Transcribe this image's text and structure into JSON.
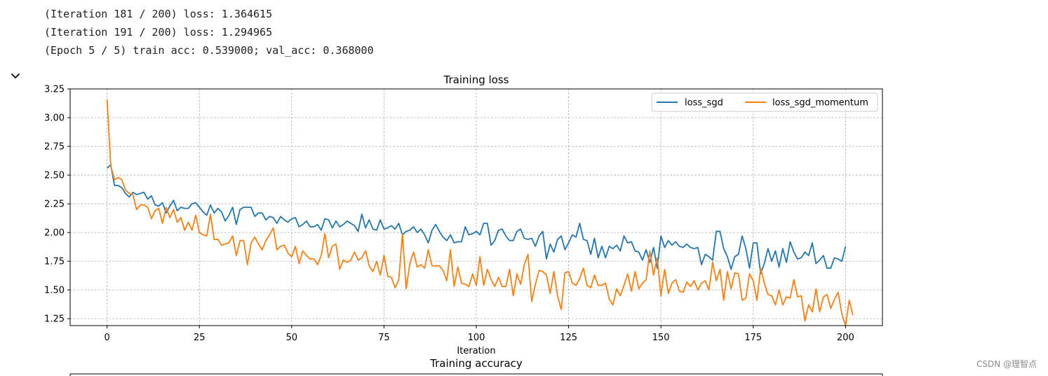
{
  "notebook": {
    "log_lines": [
      "(Iteration 181 / 200) loss: 1.364615",
      "(Iteration 191 / 200) loss: 1.294965",
      "(Epoch 5 / 5) train acc: 0.539000; val_acc: 0.368000"
    ],
    "collapse_icon": "chevron-down-icon"
  },
  "watermark": "CSDN @理智点",
  "chart_data": [
    {
      "type": "line",
      "title": "Training loss",
      "xlabel": "Iteration",
      "ylabel": "",
      "xlim": [
        -10,
        210
      ],
      "ylim": [
        1.19,
        3.25
      ],
      "xticks": [
        0,
        25,
        50,
        75,
        100,
        125,
        150,
        175,
        200
      ],
      "yticks": [
        1.25,
        1.5,
        1.75,
        2.0,
        2.25,
        2.5,
        2.75,
        3.0,
        3.25
      ],
      "grid": true,
      "legend": "top-right",
      "legend_columns": 2,
      "series": [
        {
          "name": "loss_sgd",
          "color": "#1f77b4",
          "values": [
            2.56,
            2.59,
            2.41,
            2.41,
            2.39,
            2.34,
            2.31,
            2.35,
            2.33,
            2.34,
            2.35,
            2.29,
            2.32,
            2.24,
            2.23,
            2.26,
            2.17,
            2.23,
            2.28,
            2.19,
            2.22,
            2.21,
            2.21,
            2.25,
            2.26,
            2.22,
            2.18,
            2.15,
            2.24,
            2.17,
            2.21,
            2.18,
            2.1,
            2.15,
            2.22,
            2.07,
            2.2,
            2.22,
            2.22,
            2.22,
            2.14,
            2.17,
            2.17,
            2.11,
            2.14,
            2.13,
            2.08,
            2.14,
            2.11,
            2.09,
            2.12,
            2.13,
            2.05,
            2.07,
            2.1,
            2.05,
            2.05,
            2.07,
            2.02,
            2.12,
            2.11,
            2.04,
            2.1,
            2.05,
            2.07,
            2.1,
            2.08,
            2.06,
            2.01,
            2.16,
            2.04,
            2.11,
            2.03,
            2.02,
            2.11,
            2.03,
            2.04,
            2.06,
            2.03,
            2.08,
            1.98,
            2.01,
            2.02,
            2.05,
            2.0,
            2.03,
            1.98,
            1.91,
            2.02,
            2.07,
            2.01,
            1.96,
            1.93,
            1.98,
            1.91,
            1.92,
            1.92,
            2.05,
            1.98,
            1.99,
            2.01,
            1.98,
            2.08,
            2.08,
            1.89,
            1.93,
            2.02,
            2.03,
            1.97,
            1.93,
            1.93,
            2.01,
            2.03,
            1.95,
            1.94,
            1.95,
            1.88,
            1.97,
            2.01,
            1.77,
            1.9,
            1.83,
            1.94,
            1.97,
            1.85,
            1.91,
            1.98,
            1.96,
            2.08,
            1.94,
            1.93,
            1.81,
            1.95,
            1.78,
            1.88,
            1.78,
            1.88,
            1.86,
            1.89,
            1.84,
            1.97,
            1.91,
            1.92,
            1.84,
            1.83,
            1.76,
            1.85,
            1.74,
            1.87,
            1.69,
            1.97,
            1.87,
            1.93,
            1.89,
            1.92,
            1.88,
            1.87,
            1.9,
            1.87,
            1.86,
            1.87,
            1.72,
            1.81,
            1.79,
            1.76,
            2.01,
            2.01,
            1.86,
            1.79,
            1.68,
            1.79,
            1.81,
            1.97,
            1.86,
            1.69,
            1.91,
            1.91,
            1.64,
            1.73,
            1.86,
            1.75,
            1.84,
            1.7,
            1.86,
            1.74,
            1.92,
            1.83,
            1.77,
            1.78,
            1.83,
            1.8,
            1.91,
            1.73,
            1.76,
            1.8,
            1.69,
            1.69,
            1.78,
            1.77,
            1.75,
            1.88
          ]
        },
        {
          "name": "loss_sgd_momentum",
          "color": "#ff7f0e",
          "values": [
            3.16,
            2.58,
            2.46,
            2.48,
            2.46,
            2.37,
            2.34,
            2.33,
            2.2,
            2.24,
            2.24,
            2.22,
            2.12,
            2.19,
            2.21,
            2.08,
            2.22,
            2.13,
            2.2,
            2.09,
            2.13,
            2.02,
            2.09,
            2.02,
            2.15,
            2.0,
            1.98,
            1.97,
            2.16,
            1.94,
            1.94,
            1.89,
            1.9,
            1.91,
            1.97,
            1.8,
            1.93,
            1.93,
            1.72,
            1.91,
            1.96,
            1.9,
            1.85,
            1.93,
            1.98,
            2.04,
            1.85,
            1.88,
            1.89,
            1.82,
            1.79,
            1.88,
            1.73,
            1.84,
            1.8,
            1.77,
            1.77,
            1.72,
            1.8,
            1.99,
            1.78,
            1.88,
            1.9,
            1.68,
            1.76,
            1.74,
            1.76,
            1.83,
            1.76,
            1.78,
            1.84,
            1.71,
            1.66,
            1.75,
            1.63,
            1.8,
            1.62,
            1.61,
            1.52,
            1.59,
            1.99,
            1.51,
            1.73,
            1.83,
            1.7,
            1.72,
            1.69,
            1.85,
            1.71,
            1.71,
            1.71,
            1.67,
            1.58,
            1.85,
            1.53,
            1.7,
            1.56,
            1.55,
            1.53,
            1.64,
            1.54,
            1.79,
            1.54,
            1.68,
            1.59,
            1.53,
            1.61,
            1.53,
            1.53,
            1.68,
            1.45,
            1.64,
            1.55,
            1.72,
            1.81,
            1.4,
            1.55,
            1.67,
            1.66,
            1.63,
            1.47,
            1.66,
            1.45,
            1.33,
            1.65,
            1.66,
            1.56,
            1.54,
            1.6,
            1.69,
            1.54,
            1.52,
            1.63,
            1.54,
            1.54,
            1.56,
            1.42,
            1.37,
            1.51,
            1.45,
            1.54,
            1.64,
            1.49,
            1.66,
            1.51,
            1.56,
            1.59,
            1.84,
            1.63,
            1.78,
            1.45,
            1.68,
            1.47,
            1.56,
            1.59,
            1.49,
            1.48,
            1.57,
            1.53,
            1.58,
            1.5,
            1.56,
            1.58,
            1.5,
            1.74,
            1.58,
            1.68,
            1.41,
            1.66,
            1.51,
            1.65,
            1.64,
            1.41,
            1.43,
            1.64,
            1.58,
            1.41,
            1.69,
            1.56,
            1.46,
            1.45,
            1.37,
            1.5,
            1.37,
            1.44,
            1.43,
            1.59,
            1.44,
            1.45,
            1.23,
            1.37,
            1.31,
            1.51,
            1.31,
            1.44,
            1.46,
            1.34,
            1.42,
            1.48,
            1.29,
            1.19,
            1.41,
            1.28
          ]
        }
      ]
    },
    {
      "type": "line",
      "title": "Training accuracy",
      "xlabel": "",
      "ylabel": "",
      "grid": true,
      "series": []
    }
  ]
}
